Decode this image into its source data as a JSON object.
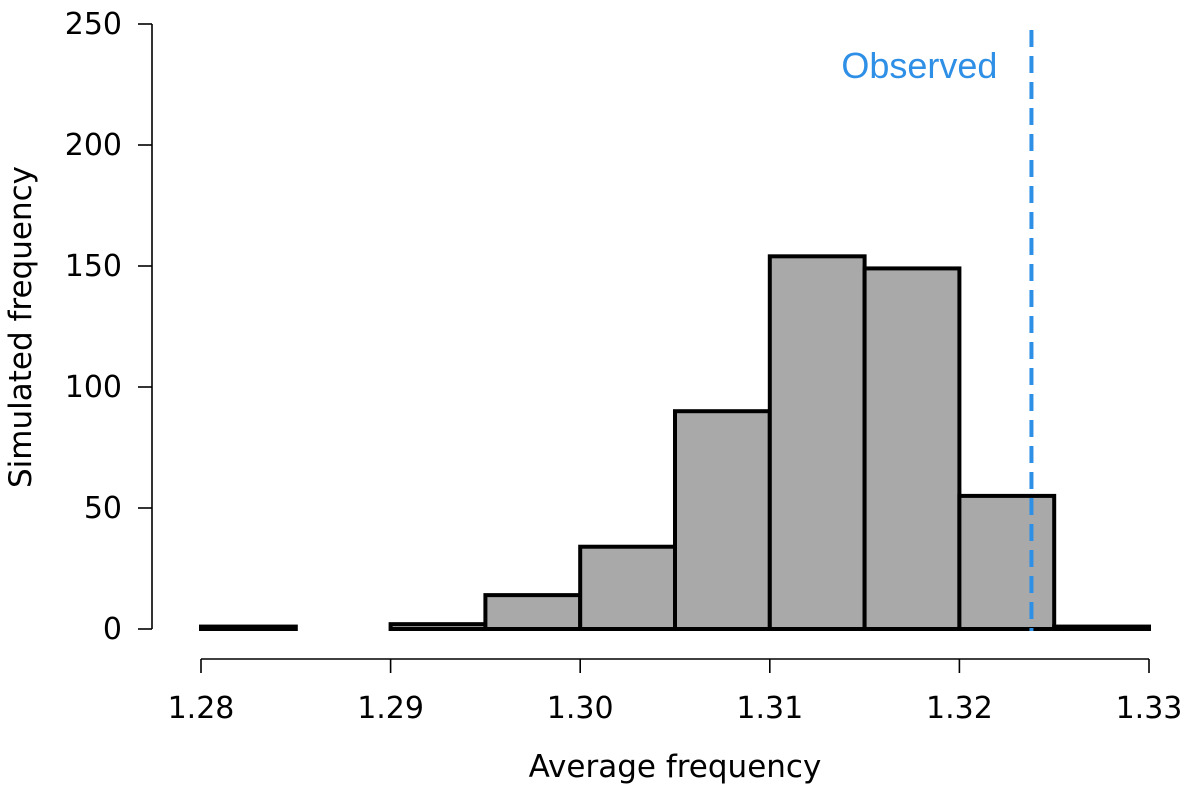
{
  "chart_data": {
    "type": "bar",
    "title": "",
    "xlabel": "Average frequency",
    "ylabel": "Simulated frequency",
    "xlim": [
      1.28,
      1.33
    ],
    "ylim": [
      0,
      250
    ],
    "x_ticks": [
      "1.28",
      "1.29",
      "1.30",
      "1.31",
      "1.32",
      "1.33"
    ],
    "y_ticks": [
      "0",
      "50",
      "100",
      "150",
      "200",
      "250"
    ],
    "bin_width": 0.005,
    "bins": [
      {
        "start": 1.28,
        "end": 1.285,
        "count": 1
      },
      {
        "start": 1.285,
        "end": 1.29,
        "count": 0
      },
      {
        "start": 1.29,
        "end": 1.295,
        "count": 2
      },
      {
        "start": 1.295,
        "end": 1.3,
        "count": 14
      },
      {
        "start": 1.3,
        "end": 1.305,
        "count": 34
      },
      {
        "start": 1.305,
        "end": 1.31,
        "count": 90
      },
      {
        "start": 1.31,
        "end": 1.315,
        "count": 154
      },
      {
        "start": 1.315,
        "end": 1.32,
        "count": 149
      },
      {
        "start": 1.32,
        "end": 1.325,
        "count": 55
      },
      {
        "start": 1.325,
        "end": 1.33,
        "count": 1
      }
    ],
    "annotation": {
      "label": "Observed",
      "x": 1.3238,
      "style": "dashed vertical line"
    },
    "grid": false,
    "legend": "none",
    "colors": {
      "bar_fill": "#a9a9a9",
      "bar_stroke": "#000000",
      "observed_line": "#2e8fe6",
      "axis": "#000000"
    }
  }
}
